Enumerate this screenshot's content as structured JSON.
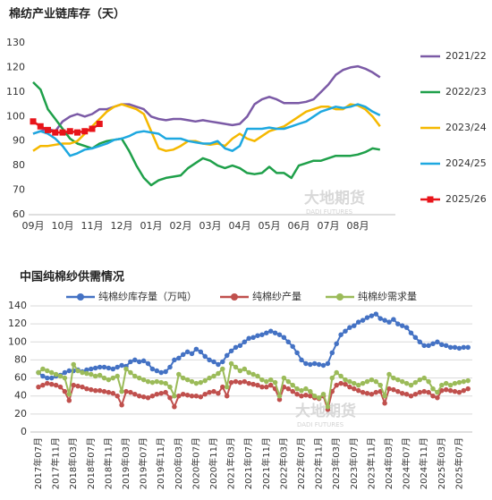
{
  "chart_data": [
    {
      "type": "line",
      "title": "棉纺产业链库存（天）",
      "categories": [
        "09月",
        null,
        null,
        null,
        "10月",
        null,
        null,
        null,
        "11月",
        null,
        null,
        null,
        "12月",
        null,
        null,
        null,
        "01月",
        null,
        null,
        null,
        "02月",
        null,
        null,
        null,
        "03月",
        null,
        null,
        null,
        "04月",
        null,
        null,
        null,
        "05月",
        null,
        null,
        null,
        "06月",
        null,
        null,
        null,
        "07月",
        null,
        null,
        null,
        "08月",
        null,
        null,
        null
      ],
      "ylim": [
        60,
        130
      ],
      "yticks": [
        60,
        70,
        80,
        90,
        100,
        110,
        120,
        130
      ],
      "grid": false,
      "legend": "right",
      "series": [
        {
          "name": "2021/22",
          "color": "#7b5aa6",
          "values": [
            93,
            94,
            95,
            94,
            98,
            100,
            101,
            100,
            101,
            103,
            103,
            104,
            105,
            105,
            104,
            103,
            100,
            99,
            98.5,
            99,
            99,
            98.5,
            98,
            98.5,
            98,
            97.5,
            97,
            96.5,
            97,
            100,
            105,
            107,
            108,
            107,
            105.5,
            105.5,
            105.5,
            106,
            107,
            110,
            113,
            117,
            119,
            120,
            120.5,
            119.5,
            118,
            116
          ]
        },
        {
          "name": "2022/23",
          "color": "#1fa04a",
          "values": [
            114,
            111,
            103,
            99,
            95,
            91,
            89,
            88,
            87,
            89,
            90,
            90.5,
            91,
            86,
            80,
            75,
            72,
            74,
            75,
            75.5,
            76,
            79,
            81,
            83,
            82,
            80,
            79,
            80,
            79,
            77,
            76.5,
            77,
            79.5,
            77,
            77,
            75,
            80,
            81,
            82,
            82,
            83,
            84,
            84,
            84,
            84.5,
            85.5,
            87,
            86.5
          ]
        },
        {
          "name": "2023/24",
          "color": "#f5b800",
          "values": [
            86,
            88,
            88,
            88.5,
            89,
            89,
            90,
            93,
            96,
            99,
            102,
            104,
            105,
            104,
            103,
            101,
            94,
            87,
            86,
            86.5,
            88,
            90,
            90,
            89,
            88.5,
            89,
            88,
            91,
            93,
            91,
            90,
            92,
            94,
            95,
            96,
            98,
            100,
            102,
            103,
            104,
            104,
            103,
            103,
            105,
            104.5,
            103,
            100,
            96
          ]
        },
        {
          "name": "2024/25",
          "color": "#1ea8e0",
          "values": [
            93,
            94,
            93,
            91,
            88,
            84,
            85,
            86.5,
            87,
            88,
            89,
            90.5,
            91,
            92,
            93.5,
            94,
            93.5,
            93,
            91,
            91,
            91,
            90,
            89.5,
            89,
            89,
            90,
            87,
            86,
            88,
            95,
            95,
            95,
            95.5,
            95,
            95,
            96,
            97,
            98,
            100,
            102,
            103,
            104,
            103.5,
            104,
            105,
            104,
            102,
            100.5
          ]
        },
        {
          "name": "2025/26",
          "color": "#e8141a",
          "marker": "square",
          "values": [
            98,
            96,
            94.5,
            93.5,
            93.5,
            94,
            93.5,
            94,
            95,
            97,
            null,
            null,
            null,
            null,
            null,
            null,
            null,
            null,
            null,
            null,
            null,
            null,
            null,
            null,
            null,
            null,
            null,
            null,
            null,
            null,
            null,
            null,
            null,
            null,
            null,
            null,
            null,
            null,
            null,
            null,
            null,
            null,
            null,
            null,
            null,
            null,
            null,
            null
          ]
        }
      ]
    },
    {
      "type": "line",
      "title": "中国纯棉纱供需情况",
      "categories": [
        "2017年07月",
        null,
        null,
        null,
        "2017年11月",
        null,
        null,
        null,
        "2018年03月",
        null,
        null,
        null,
        "2018年07月",
        null,
        null,
        null,
        "2018年11月",
        null,
        null,
        null,
        "2019年03月",
        null,
        null,
        null,
        "2019年07月",
        null,
        null,
        null,
        "2019年11月",
        null,
        null,
        null,
        "2020年03月",
        null,
        null,
        null,
        "2020年07月",
        null,
        null,
        null,
        "2020年11月",
        null,
        null,
        null,
        "2021年03月",
        null,
        null,
        null,
        "2021年07月",
        null,
        null,
        null,
        "2021年11月",
        null,
        null,
        null,
        "2022年03月",
        null,
        null,
        null,
        "2022年07月",
        null,
        null,
        null,
        "2022年11月",
        null,
        null,
        null,
        "2023年03月",
        null,
        null,
        null,
        "2023年07月",
        null,
        null,
        null,
        "2023年11月",
        null,
        null,
        null,
        "2024年03月",
        null,
        null,
        null,
        "2024年07月",
        null,
        null,
        null,
        "2024年11月",
        null,
        null,
        null,
        "2025年03月",
        null,
        null,
        null,
        "2025年07月",
        null,
        null
      ],
      "ylim": [
        0,
        140
      ],
      "yticks": [
        0,
        20,
        40,
        60,
        80,
        100,
        120,
        140
      ],
      "grid": true,
      "legend": "top",
      "series": [
        {
          "name": "纯棉纱库存量（万吨）",
          "color": "#4472c4",
          "marker": "circle",
          "values": [
            66,
            62,
            60,
            60,
            62,
            63,
            66,
            68,
            68,
            69,
            67,
            69,
            70,
            71,
            72,
            72,
            71,
            70,
            72,
            74,
            73,
            78,
            80,
            78,
            79,
            76,
            70,
            68,
            66,
            67,
            72,
            80,
            82,
            86,
            89,
            87,
            92,
            89,
            84,
            80,
            78,
            75,
            78,
            85,
            90,
            94,
            96,
            100,
            104,
            105,
            107,
            108,
            110,
            112,
            110,
            108,
            105,
            100,
            95,
            88,
            80,
            76,
            75,
            76,
            75,
            74,
            76,
            88,
            98,
            108,
            112,
            116,
            118,
            122,
            124,
            127,
            129,
            131,
            126,
            124,
            122,
            125,
            120,
            118,
            116,
            110,
            105,
            100,
            96,
            96,
            98,
            100,
            97,
            96,
            94,
            94,
            93,
            94,
            94
          ]
        },
        {
          "name": "纯棉纱产量",
          "color": "#c0504d",
          "marker": "circle",
          "values": [
            50,
            52,
            54,
            53,
            52,
            50,
            45,
            35,
            52,
            51,
            50,
            48,
            47,
            46,
            46,
            45,
            44,
            43,
            40,
            30,
            45,
            44,
            42,
            40,
            39,
            38,
            40,
            42,
            43,
            44,
            38,
            28,
            40,
            42,
            41,
            40,
            40,
            39,
            42,
            44,
            45,
            43,
            50,
            40,
            55,
            56,
            55,
            56,
            54,
            53,
            52,
            50,
            50,
            52,
            48,
            36,
            50,
            48,
            45,
            42,
            40,
            41,
            40,
            38,
            37,
            40,
            25,
            45,
            52,
            54,
            53,
            50,
            48,
            46,
            44,
            43,
            42,
            44,
            45,
            32,
            48,
            47,
            45,
            43,
            42,
            40,
            42,
            44,
            45,
            44,
            40,
            38,
            46,
            47,
            46,
            45,
            44,
            46,
            48
          ]
        },
        {
          "name": "纯棉纱需求量",
          "color": "#9bbb59",
          "marker": "circle",
          "values": [
            66,
            70,
            68,
            66,
            64,
            62,
            60,
            42,
            75,
            68,
            66,
            65,
            64,
            62,
            63,
            60,
            58,
            60,
            62,
            45,
            70,
            66,
            62,
            60,
            58,
            56,
            55,
            56,
            55,
            54,
            50,
            40,
            64,
            60,
            58,
            56,
            54,
            55,
            57,
            60,
            62,
            65,
            70,
            50,
            76,
            72,
            68,
            70,
            66,
            64,
            62,
            58,
            56,
            58,
            55,
            40,
            60,
            56,
            52,
            48,
            46,
            48,
            45,
            40,
            38,
            42,
            28,
            60,
            66,
            62,
            58,
            56,
            54,
            52,
            54,
            56,
            58,
            56,
            52,
            40,
            64,
            60,
            58,
            56,
            54,
            52,
            55,
            58,
            60,
            56,
            48,
            44,
            52,
            54,
            52,
            54,
            55,
            56,
            57
          ]
        }
      ]
    }
  ],
  "watermark": {
    "name": "大地期货",
    "english": "DADI FUTURES"
  }
}
